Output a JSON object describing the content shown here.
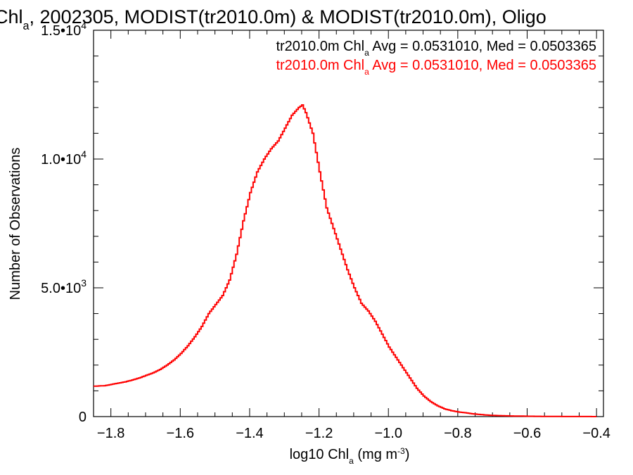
{
  "chart_data": {
    "type": "line",
    "title_parts": [
      "Chl",
      "a",
      ", 2002305, MODIST(tr2010.0m) & MODIST(tr2010.0m), Oligo"
    ],
    "xlabel_parts": [
      "log10 Chl",
      "a",
      " (mg m",
      "-3",
      ")"
    ],
    "ylabel": "Number of Observations",
    "xlim": [
      -1.85,
      -0.38
    ],
    "ylim": [
      0,
      15000
    ],
    "x_ticks": [
      {
        "value": -1.8,
        "label": "−1.8"
      },
      {
        "value": -1.6,
        "label": "−1.6"
      },
      {
        "value": -1.4,
        "label": "−1.4"
      },
      {
        "value": -1.2,
        "label": "−1.2"
      },
      {
        "value": -1.0,
        "label": "−1.0"
      },
      {
        "value": -0.8,
        "label": "−0.8"
      },
      {
        "value": -0.6,
        "label": "−0.6"
      },
      {
        "value": -0.4,
        "label": "−0.4"
      }
    ],
    "y_ticks": [
      {
        "value": 0,
        "base": "0",
        "exp": ""
      },
      {
        "value": 5000,
        "base": "5.0•10",
        "exp": "3"
      },
      {
        "value": 10000,
        "base": "1.0•10",
        "exp": "4"
      },
      {
        "value": 15000,
        "base": "1.5•10",
        "exp": "4"
      }
    ],
    "legend": [
      {
        "parts": [
          "tr2010.0m Chl",
          "a",
          " Avg = 0.0531010, Med = 0.0503365"
        ],
        "color": "#000000"
      },
      {
        "parts": [
          "tr2010.0m Chl",
          "a",
          " Avg = 0.0531010, Med = 0.0503365"
        ],
        "color": "#ff0000"
      }
    ],
    "legend_position": "top-right",
    "series": [
      {
        "color": "#ff0000",
        "style": "step",
        "x": [
          -1.85,
          -1.82,
          -1.8,
          -1.78,
          -1.76,
          -1.74,
          -1.72,
          -1.7,
          -1.68,
          -1.66,
          -1.64,
          -1.62,
          -1.6,
          -1.58,
          -1.56,
          -1.54,
          -1.52,
          -1.5,
          -1.48,
          -1.46,
          -1.44,
          -1.42,
          -1.4,
          -1.38,
          -1.36,
          -1.34,
          -1.32,
          -1.3,
          -1.28,
          -1.26,
          -1.25,
          -1.24,
          -1.22,
          -1.2,
          -1.18,
          -1.16,
          -1.14,
          -1.12,
          -1.1,
          -1.08,
          -1.06,
          -1.04,
          -1.02,
          -1.0,
          -0.98,
          -0.96,
          -0.94,
          -0.92,
          -0.9,
          -0.88,
          -0.86,
          -0.84,
          -0.82,
          -0.8,
          -0.78,
          -0.76,
          -0.74,
          -0.72,
          -0.7,
          -0.65,
          -0.6,
          -0.55,
          -0.5,
          -0.45,
          -0.4
        ],
        "y": [
          1180,
          1200,
          1250,
          1300,
          1350,
          1420,
          1500,
          1600,
          1700,
          1830,
          2000,
          2200,
          2450,
          2750,
          3100,
          3500,
          4000,
          4350,
          4700,
          5300,
          6300,
          7600,
          8700,
          9500,
          10000,
          10400,
          10700,
          11200,
          11700,
          12000,
          12100,
          11800,
          11000,
          9500,
          8100,
          7300,
          6500,
          5700,
          5000,
          4400,
          4100,
          3700,
          3200,
          2700,
          2300,
          1900,
          1500,
          1100,
          800,
          580,
          420,
          300,
          230,
          180,
          150,
          110,
          85,
          60,
          45,
          25,
          15,
          8,
          4,
          2,
          1
        ]
      }
    ]
  }
}
